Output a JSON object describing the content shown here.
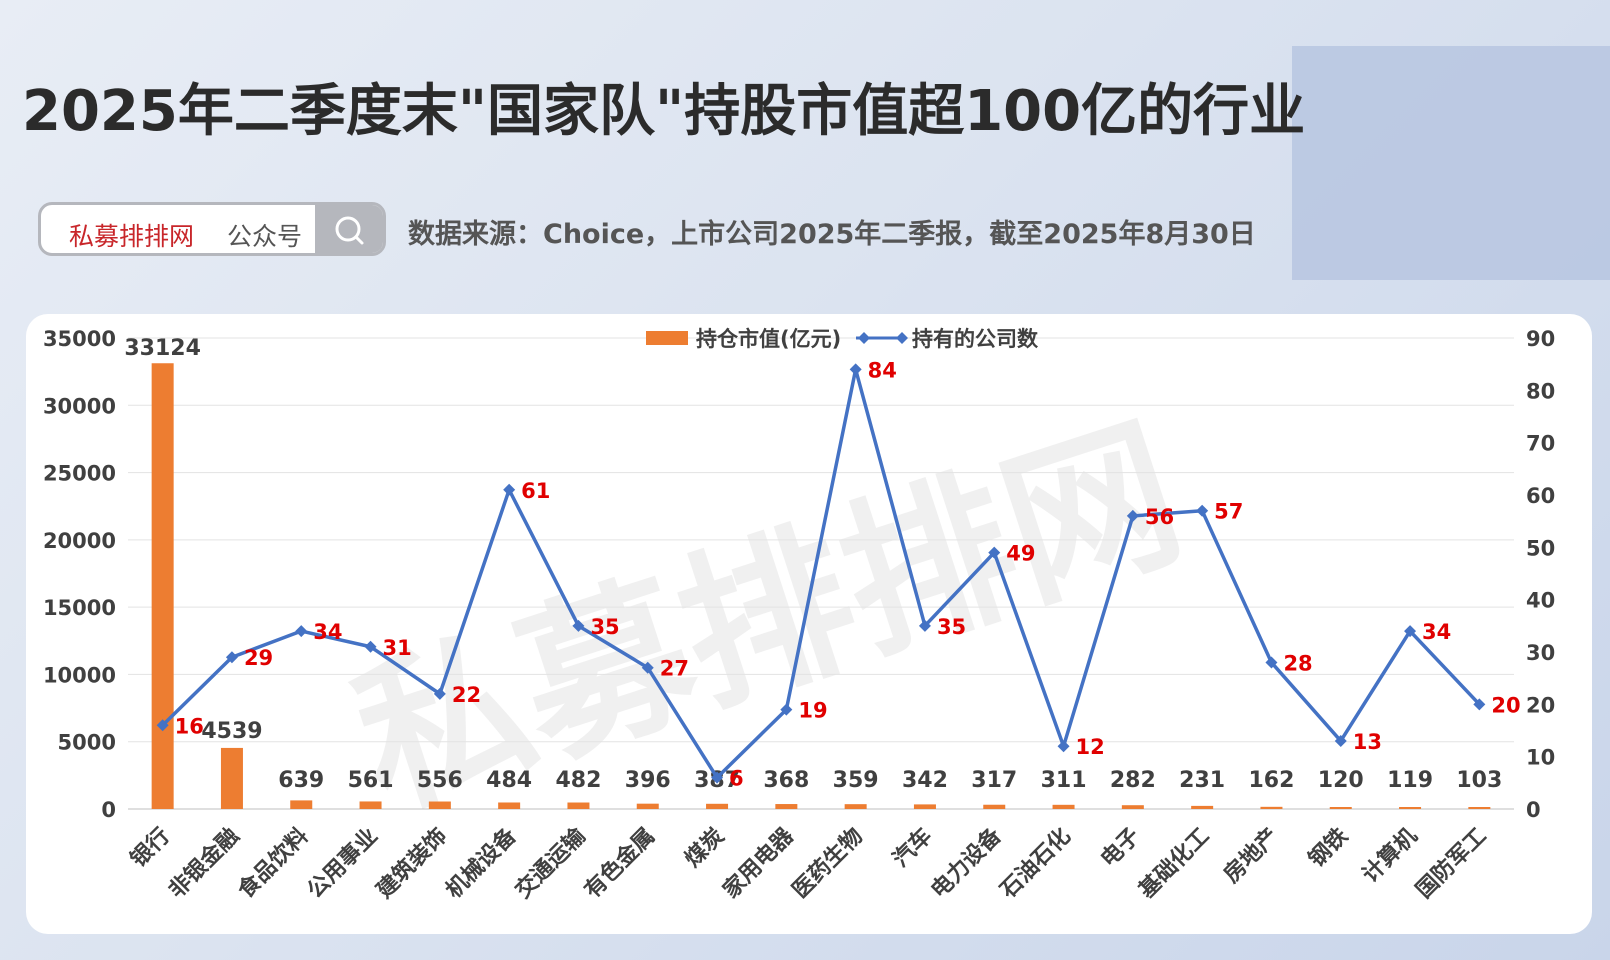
{
  "header": {
    "title": "2025年二季度末\"国家队\"持股市值超100亿的行业",
    "search": {
      "brand": "私募排排网",
      "sub": "公众号"
    },
    "source": "数据来源：Choice，上市公司2025年二季报，截至2025年8月30日"
  },
  "watermark": "私募排排网",
  "colors": {
    "bar": "#ed7d31",
    "line": "#4472c4",
    "lineLabel": "#e00000",
    "title": "#2b2b2b"
  },
  "chart_data": {
    "type": "bar",
    "title": "",
    "categories": [
      "银行",
      "非银金融",
      "食品饮料",
      "公用事业",
      "建筑装饰",
      "机械设备",
      "交通运输",
      "有色金属",
      "煤炭",
      "家用电器",
      "医药生物",
      "汽车",
      "电力设备",
      "石油石化",
      "电子",
      "基础化工",
      "房地产",
      "钢铁",
      "计算机",
      "国防军工"
    ],
    "series": [
      {
        "name": "持仓市值(亿元)",
        "type": "bar",
        "axis": "left",
        "values": [
          33124,
          4539,
          639,
          561,
          556,
          484,
          482,
          396,
          387,
          368,
          359,
          342,
          317,
          311,
          282,
          231,
          162,
          120,
          119,
          103
        ]
      },
      {
        "name": "持有的公司数",
        "type": "line",
        "axis": "right",
        "values": [
          16,
          29,
          34,
          31,
          22,
          61,
          35,
          27,
          6,
          19,
          84,
          35,
          49,
          12,
          56,
          57,
          28,
          13,
          34,
          20
        ]
      }
    ],
    "ylim_left": [
      0,
      35000
    ],
    "yticks_left": [
      "35000",
      "30000",
      "25000",
      "20000",
      "15000",
      "10000",
      "5000",
      "0"
    ],
    "ylim_right": [
      0,
      90
    ],
    "yticks_right": [
      "90",
      "80",
      "70",
      "60",
      "50",
      "40",
      "30",
      "20",
      "10",
      "0"
    ],
    "legend": "top-center",
    "grid": true
  }
}
